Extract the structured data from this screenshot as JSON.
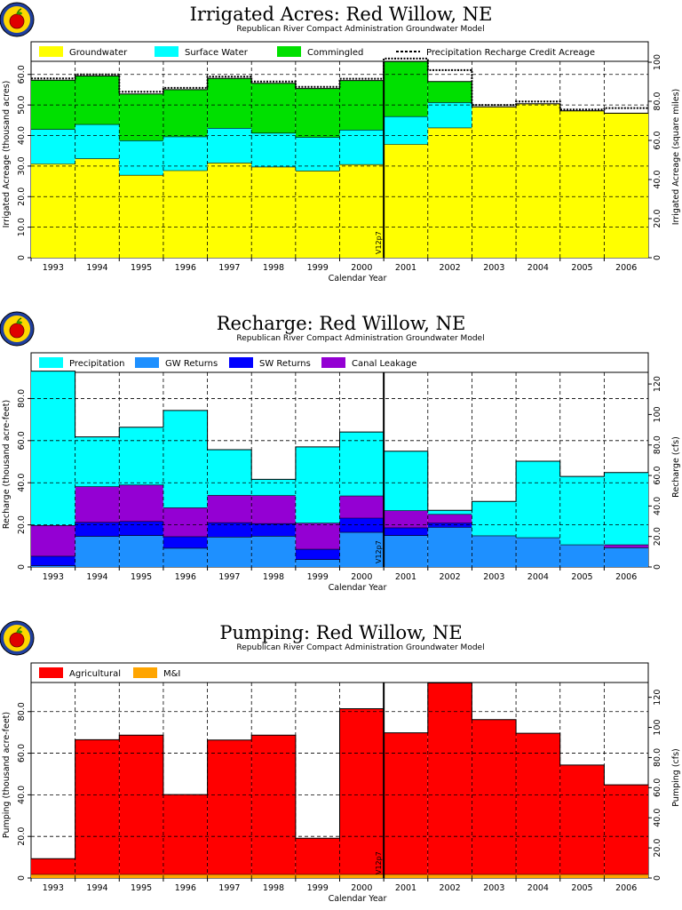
{
  "chart_data": [
    {
      "type": "stacked-step-area",
      "title": "Irrigated Acres: Red Willow, NE",
      "subtitle": "Republican River Compact Administration Groundwater Model",
      "xlabel": "Calendar Year",
      "ylabel": "Irrigated Acreage (thousand acres)",
      "ylabel_right": "Irrigated Acreage (square miles)",
      "ylim": [
        0,
        64
      ],
      "yticks": [
        "0",
        "10.0",
        "20.0",
        "30.0",
        "40.0",
        "50.0",
        "60.0"
      ],
      "yticks_right": [
        "0",
        "20.0",
        "40.0",
        "60.0",
        "80.0",
        "100"
      ],
      "categories": [
        "1993",
        "1994",
        "1995",
        "1996",
        "1997",
        "1998",
        "1999",
        "2000",
        "2001",
        "2002",
        "2003",
        "2004",
        "2005",
        "2006"
      ],
      "marker_label": "V12p7",
      "marker_after_index": 7,
      "series": [
        {
          "name": "Groundwater",
          "color": "#ffff00",
          "values": [
            30.7,
            32.4,
            27.0,
            28.5,
            31.0,
            29.7,
            28.4,
            30.5,
            37.1,
            42.5,
            49.4,
            50.4,
            48.1,
            47.3
          ]
        },
        {
          "name": "Surface Water",
          "color": "#00ffff",
          "values": [
            11.3,
            11.2,
            11.3,
            11.1,
            11.4,
            11.1,
            11.0,
            11.3,
            9.1,
            8.3,
            0,
            0,
            0,
            0
          ]
        },
        {
          "name": "Commingled",
          "color": "#00e000",
          "values": [
            16.1,
            15.9,
            15.3,
            15.4,
            16.3,
            16.3,
            16.0,
            16.2,
            18.0,
            6.9,
            0,
            0,
            0,
            0
          ]
        }
      ],
      "line_series": {
        "name": "Precipitation Recharge Credit Acreage",
        "values": [
          58.7,
          60.0,
          54.3,
          55.6,
          59.3,
          57.7,
          55.9,
          58.6,
          65.2,
          61.4,
          50.0,
          51.1,
          48.5,
          49.0
        ]
      }
    },
    {
      "type": "stacked-step-area",
      "title": "Recharge: Red Willow, NE",
      "subtitle": "Republican River Compact Administration Groundwater Model",
      "xlabel": "Calendar Year",
      "ylabel": "Recharge (thousand acre-feet)",
      "ylabel_right": "Recharge (cfs)",
      "ylim": [
        0,
        92
      ],
      "yticks": [
        "0",
        "20.0",
        "40.0",
        "60.0",
        "80.0"
      ],
      "yticks_right": [
        "0",
        "20.0",
        "40.0",
        "60.0",
        "80.0",
        "100",
        "120"
      ],
      "categories": [
        "1993",
        "1994",
        "1995",
        "1996",
        "1997",
        "1998",
        "1999",
        "2000",
        "2001",
        "2002",
        "2003",
        "2004",
        "2005",
        "2006"
      ],
      "marker_label": "V12p7",
      "marker_after_index": 7,
      "series": [
        {
          "name": "GW Returns",
          "color": "#1e90ff",
          "values": [
            0.6,
            14.5,
            14.9,
            8.9,
            14.2,
            14.6,
            3.5,
            16.4,
            14.9,
            18.8,
            14.8,
            13.9,
            10.5,
            9.1
          ]
        },
        {
          "name": "SW Returns",
          "color": "#0000ff",
          "values": [
            4.5,
            6.7,
            6.7,
            5.5,
            6.8,
            6.0,
            4.9,
            6.8,
            3.7,
            2.1,
            0,
            0,
            0,
            0
          ]
        },
        {
          "name": "Canal Leakage",
          "color": "#9400d3",
          "values": [
            14.6,
            16.9,
            17.3,
            13.7,
            13.0,
            13.3,
            12.4,
            10.5,
            8.1,
            4.1,
            0,
            0,
            0,
            1.4
          ]
        },
        {
          "name": "Precipitation",
          "color": "#00ffff",
          "values": [
            73.3,
            23.7,
            27.5,
            46.2,
            21.7,
            7.7,
            36.2,
            30.4,
            28.3,
            1.9,
            16.3,
            36.3,
            32.5,
            34.3
          ]
        }
      ]
    },
    {
      "type": "stacked-step-area",
      "title": "Pumping: Red Willow, NE",
      "subtitle": "Republican River Compact Administration Groundwater Model",
      "xlabel": "Calendar Year",
      "ylabel": "Pumping (thousand acre-feet)",
      "ylabel_right": "Pumping (cfs)",
      "ylim": [
        0,
        94
      ],
      "yticks": [
        "0",
        "20.0",
        "40.0",
        "60.0",
        "80.0"
      ],
      "yticks_right": [
        "0",
        "20.0",
        "40.0",
        "60.0",
        "80.0",
        "100",
        "120"
      ],
      "categories": [
        "1993",
        "1994",
        "1995",
        "1996",
        "1997",
        "1998",
        "1999",
        "2000",
        "2001",
        "2002",
        "2003",
        "2004",
        "2005",
        "2006"
      ],
      "marker_label": "V12p7",
      "marker_after_index": 7,
      "series": [
        {
          "name": "M&I",
          "color": "#ffa500",
          "values": [
            1.7,
            1.7,
            1.7,
            1.7,
            1.7,
            1.7,
            1.7,
            1.7,
            1.7,
            1.7,
            1.7,
            1.7,
            1.7,
            1.7
          ]
        },
        {
          "name": "Agricultural",
          "color": "#ff0000",
          "values": [
            7.6,
            64.8,
            67.0,
            38.4,
            64.6,
            67.0,
            17.4,
            79.7,
            68.1,
            92.1,
            74.5,
            67.9,
            52.6,
            43.1
          ]
        }
      ]
    }
  ]
}
